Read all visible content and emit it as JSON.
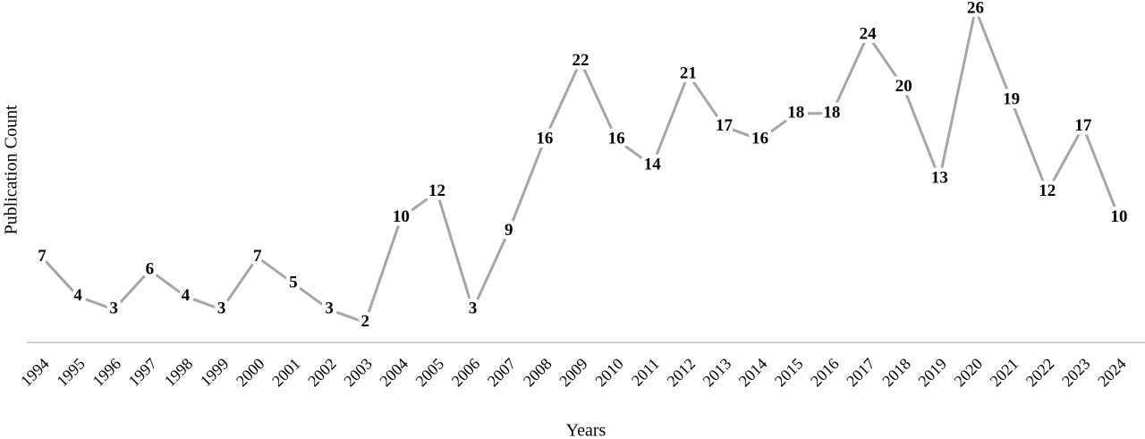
{
  "chart_data": {
    "type": "line",
    "x_label": "Years",
    "y_label": "Publication Count",
    "categories": [
      "1994",
      "1995",
      "1996",
      "1997",
      "1998",
      "1999",
      "2000",
      "2001",
      "2002",
      "2003",
      "2004",
      "2005",
      "2006",
      "2007",
      "2008",
      "2009",
      "2010",
      "2011",
      "2012",
      "2013",
      "2014",
      "2015",
      "2016",
      "2017",
      "2018",
      "2019",
      "2020",
      "2021",
      "2022",
      "2023",
      "2024"
    ],
    "values": [
      7,
      4,
      3,
      6,
      4,
      3,
      7,
      5,
      3,
      2,
      10,
      12,
      3,
      9,
      16,
      22,
      16,
      14,
      21,
      17,
      16,
      18,
      18,
      24,
      20,
      13,
      26,
      19,
      12,
      17,
      10
    ],
    "color": "#a5a5a5",
    "axis_color": "#bfbfbf"
  }
}
